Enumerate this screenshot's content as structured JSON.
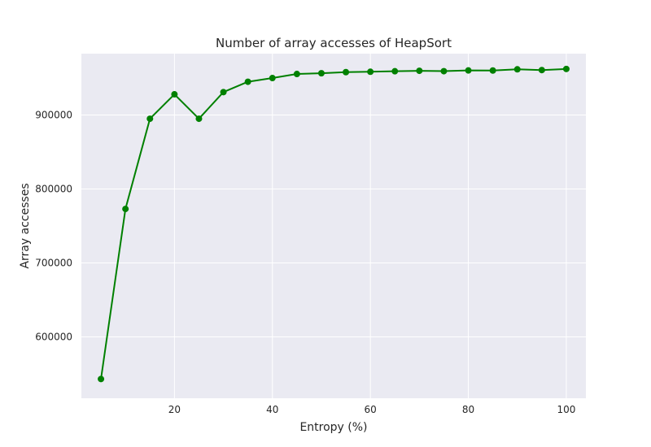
{
  "chart_data": {
    "type": "line",
    "title": "Number of array accesses of HeapSort",
    "xlabel": "Entropy (%)",
    "ylabel": "Array accesses",
    "xlim": [
      1,
      104
    ],
    "ylim": [
      517000,
      983000
    ],
    "xticks": [
      20,
      40,
      60,
      80,
      100
    ],
    "yticks": [
      600000,
      700000,
      800000,
      900000
    ],
    "grid": true,
    "series": [
      {
        "color": "#008000",
        "marker": "circle",
        "x": [
          5,
          10,
          15,
          20,
          25,
          30,
          35,
          40,
          45,
          50,
          55,
          60,
          65,
          70,
          75,
          80,
          85,
          90,
          95,
          100
        ],
        "y": [
          543000,
          773000,
          895000,
          928000,
          895000,
          931000,
          945000,
          950000,
          955500,
          956500,
          958000,
          958500,
          959200,
          959800,
          959300,
          960300,
          960200,
          961800,
          960800,
          962300
        ]
      }
    ],
    "colors": {
      "plot_bg": "#eaeaf2",
      "grid": "#ffffff",
      "text": "#262626"
    }
  }
}
